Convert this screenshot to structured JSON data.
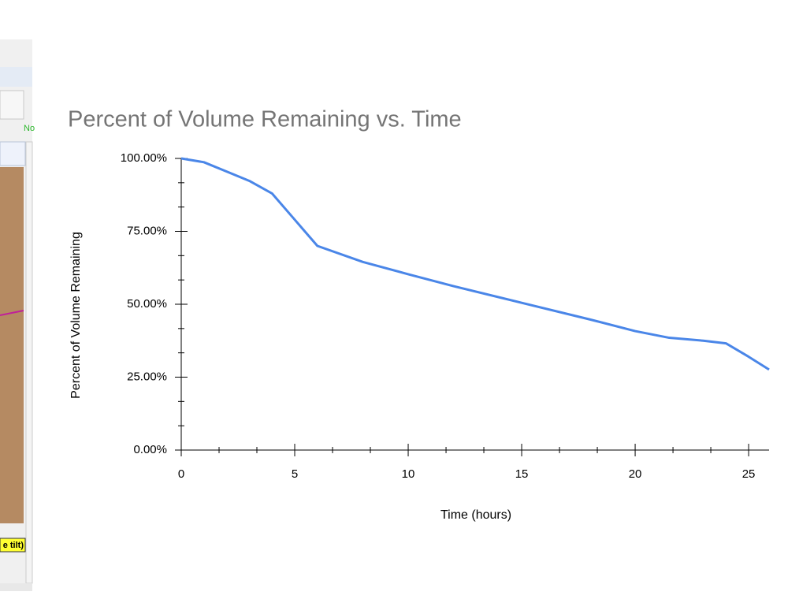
{
  "ui_fragment": {
    "status": "No",
    "label": "e tilt)"
  },
  "chart_data": {
    "type": "line",
    "title": "Percent of Volume Remaining vs. Time",
    "x_label": "Time (hours)",
    "y_label": "Percent of Volume Remaining",
    "x": [
      0,
      1,
      2,
      3,
      4,
      5,
      6,
      8,
      10,
      12,
      15,
      18,
      20,
      21.5,
      23,
      24,
      25,
      25.9
    ],
    "values": [
      100,
      98.7,
      95.5,
      92.3,
      88,
      79,
      70,
      64.5,
      60.3,
      56.2,
      50.5,
      44.8,
      40.8,
      38.5,
      37.5,
      36.6,
      32,
      27.6
    ],
    "color": "#4a86e8",
    "xlim": [
      0,
      25.9
    ],
    "ylim": [
      0,
      100
    ],
    "xticks": [
      0,
      5,
      10,
      15,
      20,
      25
    ],
    "yticks": [
      {
        "value": 0,
        "label": "0.00%"
      },
      {
        "value": 25,
        "label": "25.00%"
      },
      {
        "value": 50,
        "label": "50.00%"
      },
      {
        "value": 75,
        "label": "75.00%"
      },
      {
        "value": 100,
        "label": "100.00%"
      }
    ],
    "xminorticks": [
      1.667,
      3.333,
      6.667,
      8.333,
      11.667,
      13.333,
      16.667,
      18.333,
      21.667,
      23.333
    ],
    "yminorticks": [
      8.333,
      16.667,
      33.333,
      41.667,
      58.333,
      66.667,
      83.333,
      91.667
    ]
  }
}
